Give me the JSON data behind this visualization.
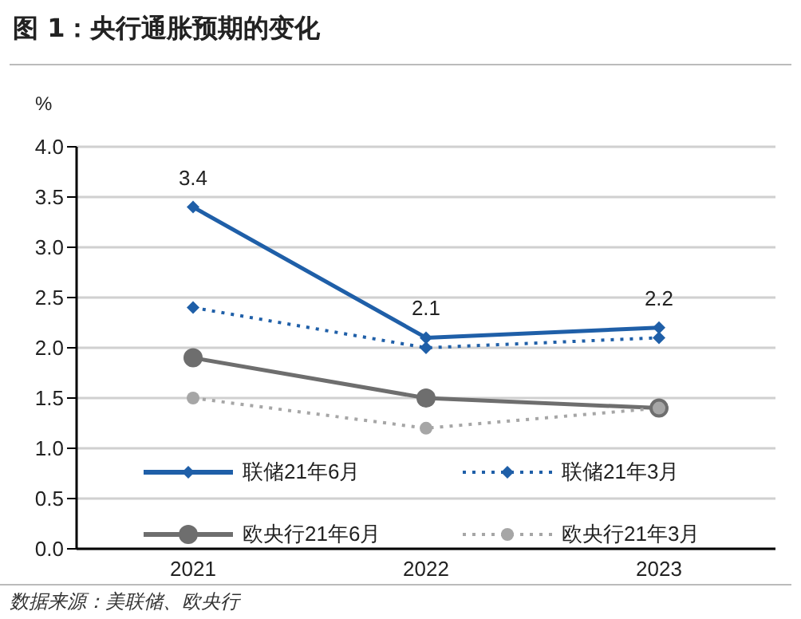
{
  "chart_data": {
    "type": "line",
    "title": "图 1：央行通胀预期的变化",
    "ylabel": "%",
    "annotations": [
      "数据来源：美联储、欧央行"
    ],
    "categories": [
      "2021",
      "2022",
      "2023"
    ],
    "series": [
      {
        "name": "联储21年6月",
        "color": "#1f5fa8",
        "values": [
          3.4,
          2.1,
          2.2
        ],
        "marker": "diamond",
        "line_style": "solid",
        "value_labels": [
          "3.4",
          "2.1",
          "2.2"
        ]
      },
      {
        "name": "联储21年3月",
        "color": "#1f5fa8",
        "values": [
          2.4,
          2.0,
          2.1
        ],
        "marker": "diamond",
        "line_style": "dotted"
      },
      {
        "name": "欧央行21年6月",
        "color": "#6e6e6e",
        "values": [
          1.9,
          1.5,
          1.4
        ],
        "marker": "circle",
        "line_style": "solid"
      },
      {
        "name": "欧央行21年3月",
        "color": "#a6a6a6",
        "values": [
          1.5,
          1.2,
          1.4
        ],
        "marker": "circle",
        "line_style": "dotted"
      }
    ],
    "ylim": [
      0,
      4
    ],
    "yticks": [
      {
        "value": 0,
        "label": "0.0"
      },
      {
        "value": 0.5,
        "label": "0.5"
      },
      {
        "value": 1,
        "label": "1.0"
      },
      {
        "value": 1.5,
        "label": "1.5"
      },
      {
        "value": 2,
        "label": "2.0"
      },
      {
        "value": 2.5,
        "label": "2.5"
      },
      {
        "value": 3,
        "label": "3.0"
      },
      {
        "value": 3.5,
        "label": "3.5"
      },
      {
        "value": 4,
        "label": "4.0"
      }
    ],
    "grid": "y",
    "legend": "bottom"
  }
}
